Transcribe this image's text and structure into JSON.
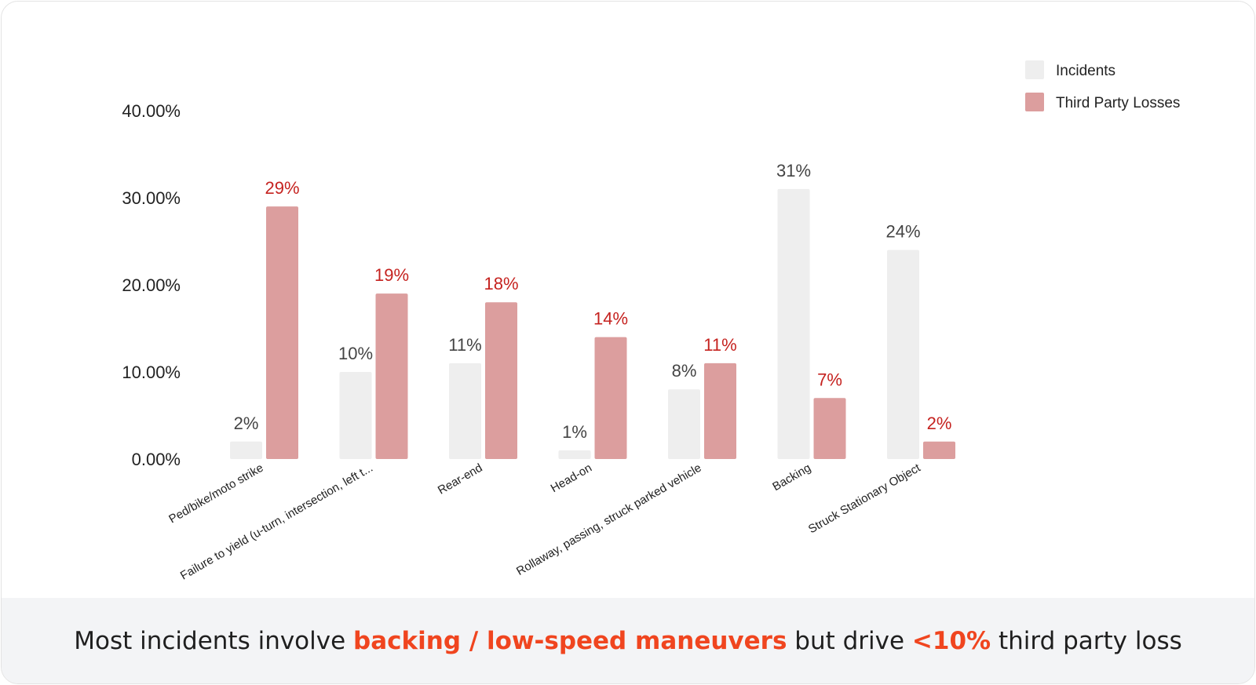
{
  "colors": {
    "incidents": "#eeeeee",
    "third_party_losses": "#dc9e9e",
    "incidents_label": "#444444",
    "losses_label": "#c5221f",
    "highlight": "#f0451f"
  },
  "chart_data": {
    "type": "bar",
    "categories": [
      "Ped/bike/moto strike",
      "Failure to yield (u-turn, intersection, left t...",
      "Rear-end",
      "Head-on",
      "Rollaway, passing, struck parked vehicle",
      "Backing",
      "Struck Stationary Object"
    ],
    "series": [
      {
        "name": "Incidents",
        "values": [
          2,
          10,
          11,
          1,
          8,
          31,
          24
        ],
        "labels": [
          "2%",
          "10%",
          "11%",
          "1%",
          "8%",
          "31%",
          "24%"
        ]
      },
      {
        "name": "Third Party Losses",
        "values": [
          29,
          19,
          18,
          14,
          11,
          7,
          2
        ],
        "labels": [
          "29%",
          "19%",
          "18%",
          "14%",
          "11%",
          "7%",
          "2%"
        ]
      }
    ],
    "yticks": [
      "0.00%",
      "10.00%",
      "20.00%",
      "30.00%",
      "40.00%"
    ],
    "ylim": [
      0,
      40
    ],
    "grid": false,
    "legend_position": "top-right"
  },
  "caption": {
    "part1": "Most incidents involve ",
    "highlight1": "backing / low-speed maneuvers",
    "part2": " but drive ",
    "highlight2": "<10%",
    "part3": " third party loss"
  }
}
